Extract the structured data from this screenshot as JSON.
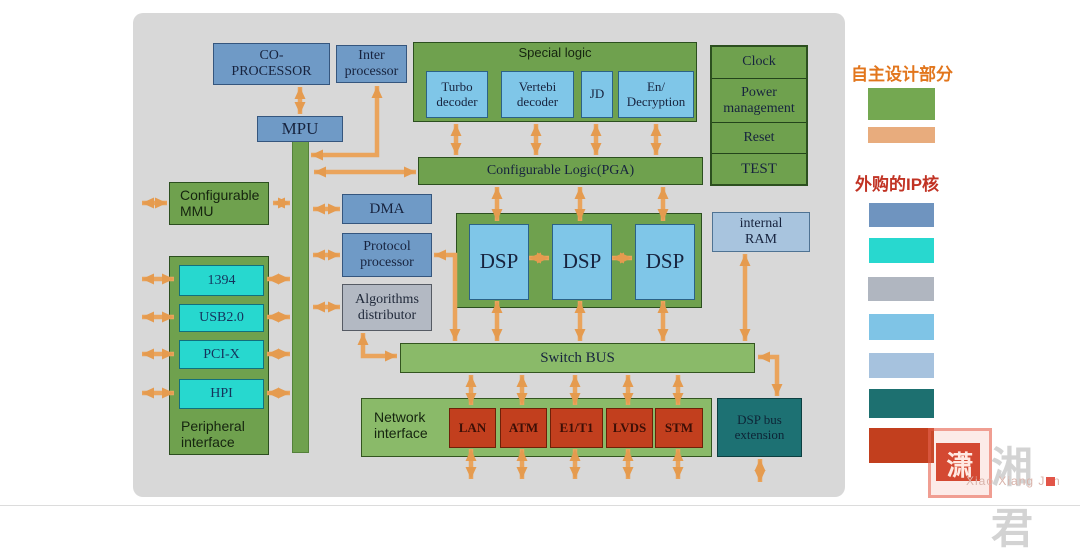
{
  "colors": {
    "canvas_bg": "#d8d8d8",
    "arrow": "#e8a155",
    "green": "#6fa14e",
    "light_green": "#8aba69",
    "steel_blue": "#6f9ac6",
    "light_blue": "#7fc6e8",
    "cyan": "#27d8cf",
    "gray_block": "#b3b9c3",
    "ram_blue": "#a8c4de",
    "rust": "#c23f1e",
    "teal": "#1d7173",
    "self_title": "#e2761d",
    "purchased_title": "#c13324"
  },
  "canvas": {
    "co_processor": "CO-\nPROCESSOR",
    "inter_processor": "Inter\nprocessor",
    "mpu": "MPU",
    "special_logic": {
      "title": "Special logic",
      "items": [
        "Turbo\ndecoder",
        "Vertebi\ndecoder",
        "JD",
        "En/\nDecryption"
      ]
    },
    "system_blocks": [
      "Clock",
      "Power\nmanagement",
      "Reset",
      "TEST"
    ],
    "pga": "Configurable Logic(PGA)",
    "mmu": "Configurable\nMMU",
    "dma": "DMA",
    "protocol_processor": "Protocol\nprocessor",
    "algorithms_distributor": "Algorithms\ndistributor",
    "dsp_units": [
      "DSP",
      "DSP",
      "DSP"
    ],
    "internal_ram": "internal\nRAM",
    "peripheral": {
      "title": "Peripheral\ninterface",
      "items": [
        "1394",
        "USB2.0",
        "PCI-X",
        "HPI"
      ]
    },
    "switch_bus": "Switch BUS",
    "network": {
      "title": "Network\ninterface",
      "items": [
        "LAN",
        "ATM",
        "E1/T1",
        "LVDS",
        "STM"
      ]
    },
    "dsp_bus_extension": "DSP bus\nextension"
  },
  "legend": {
    "self_designed": {
      "title": "自主设计部分",
      "swatches": [
        "#74a851",
        "#e8ac7d"
      ]
    },
    "purchased": {
      "title": "外购的IP核",
      "swatches": [
        "#6f94bf",
        "#28d8cf",
        "#b0b6c0",
        "#7fc4e6",
        "#a6c2de",
        "#1d7070",
        "#c23f1e"
      ]
    }
  },
  "watermark": {
    "seal_char": "潇",
    "name": "湘君",
    "caption": "Xiao Xiang Jun"
  }
}
